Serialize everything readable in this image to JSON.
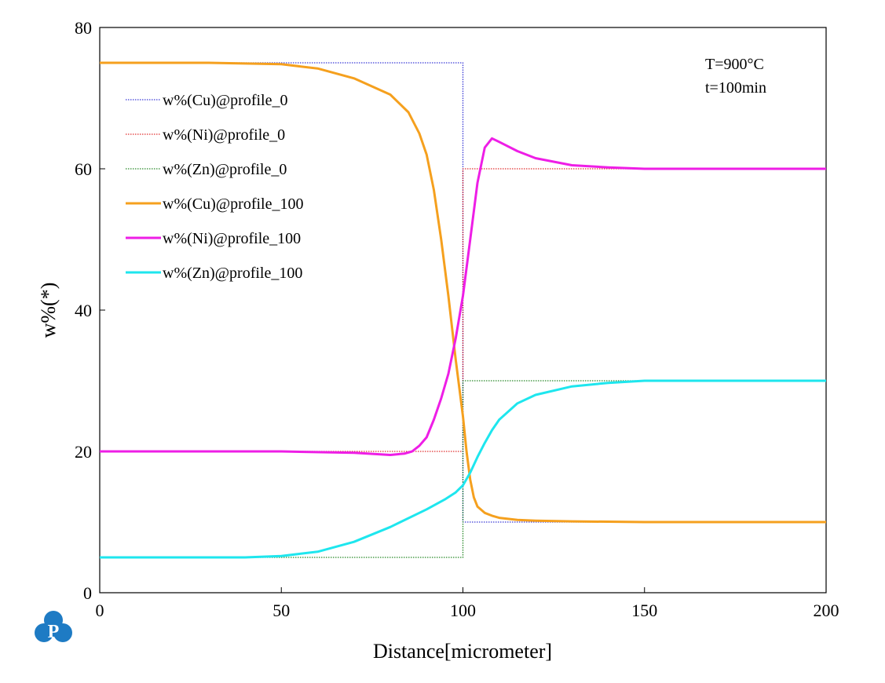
{
  "chart_data": {
    "type": "line",
    "xlabel": "Distance[micrometer]",
    "ylabel": "w%(*)",
    "xlim": [
      0,
      200
    ],
    "ylim": [
      0,
      80
    ],
    "x_ticks": [
      0,
      50,
      100,
      150,
      200
    ],
    "y_ticks": [
      0,
      20,
      40,
      60,
      80
    ],
    "grid": false,
    "legend_position": "top-left",
    "annotations": [
      "T=900°C",
      "t=100min"
    ],
    "series": [
      {
        "name": "w%(Cu)@profile_0",
        "color": "#3b3bd6",
        "style": "dotted",
        "x": [
          0,
          100,
          100,
          200
        ],
        "y": [
          75,
          75,
          10,
          10
        ]
      },
      {
        "name": "w%(Ni)@profile_0",
        "color": "#e03030",
        "style": "dotted",
        "x": [
          0,
          100,
          100,
          200
        ],
        "y": [
          20,
          20,
          60,
          60
        ]
      },
      {
        "name": "w%(Zn)@profile_0",
        "color": "#2a8a2a",
        "style": "dotted",
        "x": [
          0,
          100,
          100,
          200
        ],
        "y": [
          5,
          5,
          30,
          30
        ]
      },
      {
        "name": "w%(Cu)@profile_100",
        "color": "#f5a01e",
        "style": "solid",
        "x": [
          0,
          30,
          50,
          60,
          70,
          80,
          85,
          88,
          90,
          92,
          94,
          96,
          98,
          100,
          101,
          102,
          103,
          104,
          106,
          108,
          110,
          115,
          120,
          130,
          150,
          200
        ],
        "y": [
          75,
          75,
          74.8,
          74.2,
          72.8,
          70.5,
          68,
          65,
          62,
          57,
          50,
          42,
          33,
          25,
          20,
          16,
          13.5,
          12.2,
          11.3,
          10.9,
          10.6,
          10.3,
          10.2,
          10.1,
          10,
          10
        ]
      },
      {
        "name": "w%(Ni)@profile_100",
        "color": "#ee1ee6",
        "style": "solid",
        "x": [
          0,
          50,
          70,
          80,
          84,
          86,
          88,
          90,
          92,
          94,
          96,
          98,
          100,
          102,
          104,
          106,
          108,
          110,
          115,
          120,
          130,
          140,
          150,
          200
        ],
        "y": [
          20,
          20,
          19.8,
          19.5,
          19.7,
          20,
          20.8,
          22,
          24.5,
          27.5,
          31,
          36,
          42,
          50,
          58,
          63,
          64.3,
          63.8,
          62.5,
          61.5,
          60.5,
          60.2,
          60,
          60
        ]
      },
      {
        "name": "w%(Zn)@profile_100",
        "color": "#1ee6ee",
        "style": "solid",
        "x": [
          0,
          40,
          50,
          60,
          70,
          80,
          90,
          95,
          98,
          100,
          102,
          104,
          106,
          108,
          110,
          115,
          120,
          130,
          140,
          150,
          200
        ],
        "y": [
          5,
          5,
          5.2,
          5.8,
          7.2,
          9.3,
          11.8,
          13.2,
          14.2,
          15.2,
          17,
          19.2,
          21.2,
          23,
          24.5,
          26.8,
          28,
          29.2,
          29.7,
          30,
          30
        ]
      }
    ]
  },
  "logo": {
    "letter": "P",
    "color": "#1e7bc4"
  }
}
